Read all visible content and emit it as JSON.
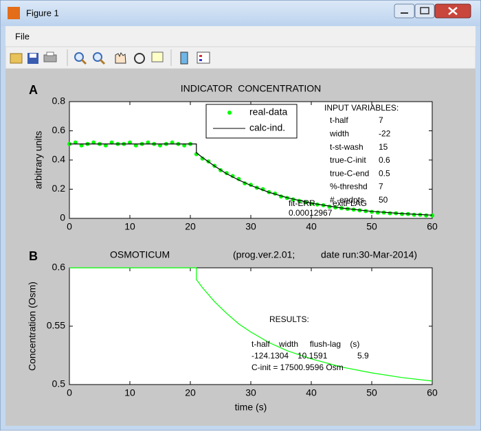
{
  "window": {
    "title": "Figure 1",
    "menu": [
      "File"
    ]
  },
  "chart_data": [
    {
      "type": "line",
      "panel_label": "A",
      "title": "INDICATOR  CONCENTRATION",
      "y_label": "arbitrary units",
      "xlim": [
        0,
        60
      ],
      "xticks": [
        0,
        10,
        20,
        30,
        40,
        50,
        60
      ],
      "ylim": [
        0,
        0.8
      ],
      "yticks": [
        0,
        0.2,
        0.4,
        0.6,
        0.8
      ],
      "series": [
        {
          "name": "real-data",
          "color": "#00ff00",
          "marker": "dot",
          "x": [
            0,
            1,
            2,
            3,
            4,
            5,
            6,
            7,
            8,
            9,
            10,
            11,
            12,
            13,
            14,
            15,
            16,
            17,
            18,
            19,
            20,
            21,
            22,
            23,
            24,
            25,
            26,
            27,
            28,
            29,
            30,
            31,
            32,
            33,
            34,
            35,
            36,
            37,
            38,
            39,
            40,
            41,
            42,
            43,
            44,
            45,
            46,
            47,
            48,
            49,
            50,
            51,
            52,
            53,
            54,
            55,
            56,
            57,
            58,
            59,
            60
          ],
          "values": [
            0.51,
            0.52,
            0.5,
            0.51,
            0.52,
            0.51,
            0.5,
            0.52,
            0.51,
            0.51,
            0.52,
            0.5,
            0.51,
            0.52,
            0.51,
            0.5,
            0.51,
            0.52,
            0.51,
            0.5,
            0.51,
            0.44,
            0.41,
            0.39,
            0.36,
            0.33,
            0.31,
            0.29,
            0.27,
            0.24,
            0.23,
            0.21,
            0.2,
            0.18,
            0.17,
            0.15,
            0.14,
            0.13,
            0.12,
            0.11,
            0.1,
            0.095,
            0.09,
            0.08,
            0.075,
            0.07,
            0.065,
            0.06,
            0.055,
            0.05,
            0.045,
            0.04,
            0.04,
            0.035,
            0.035,
            0.03,
            0.03,
            0.025,
            0.025,
            0.02,
            0.02
          ]
        },
        {
          "name": "calc-ind.",
          "color": "#000000",
          "marker": "line",
          "x": [
            0,
            21,
            21,
            22,
            24,
            26,
            28,
            30,
            33,
            36,
            40,
            45,
            50,
            55,
            60
          ],
          "values": [
            0.51,
            0.51,
            0.45,
            0.417,
            0.359,
            0.306,
            0.263,
            0.226,
            0.179,
            0.142,
            0.104,
            0.071,
            0.048,
            0.033,
            0.022
          ]
        }
      ],
      "annotations": {
        "input_title": "INPUT VARIABLES:",
        "inputs": [
          [
            "t-half",
            7
          ],
          [
            "width",
            -22
          ],
          [
            "t-st-wash",
            15
          ],
          [
            "true-C-init",
            0.6
          ],
          [
            "true-C-end",
            0.5
          ],
          [
            "%-threshd",
            7
          ],
          [
            "# -endpts",
            50
          ]
        ],
        "fit_err_label": "fit-ERR",
        "exitflag_label": "exitFLAG",
        "fit_err": 0.00012967
      }
    },
    {
      "type": "line",
      "panel_label": "B",
      "title": "OSMOTICUM",
      "subtitle": [
        "(prog.ver.2.01;",
        "date run:30-Mar-2014)"
      ],
      "x_label": "time (s)",
      "y_label": "Concentration  (Osm)",
      "xlim": [
        0,
        60
      ],
      "xticks": [
        0,
        10,
        20,
        30,
        40,
        50,
        60
      ],
      "ylim": [
        0.5,
        0.6
      ],
      "yticks": [
        0.5,
        0.55,
        0.6
      ],
      "series": [
        {
          "color": "#00ff00",
          "marker": "line",
          "x": [
            0,
            21,
            21,
            22,
            24,
            26,
            28,
            30,
            33,
            36,
            40,
            45,
            50,
            55,
            60
          ],
          "values": [
            0.6,
            0.6,
            0.59,
            0.583,
            0.571,
            0.561,
            0.552,
            0.545,
            0.536,
            0.529,
            0.522,
            0.515,
            0.51,
            0.506,
            0.503
          ]
        }
      ],
      "annotations": {
        "results_title": "RESULTS:",
        "results_header": "t-half    width     flush-lag    (s)",
        "results": [
          -124.1304,
          10.1591,
          5.9
        ],
        "c_init": "C-init = 17500.9596 Osm"
      }
    }
  ]
}
